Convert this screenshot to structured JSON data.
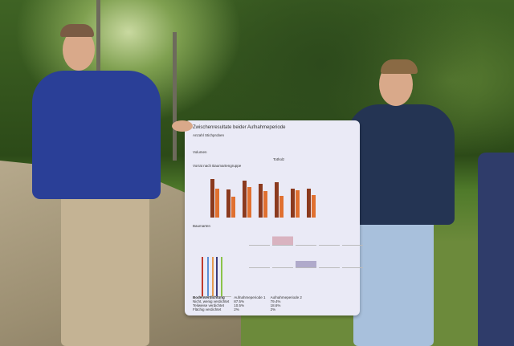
{
  "poster": {
    "title": "Zwischenresultate beider Aufnahmeperiode",
    "sections": [
      "Anzahl Stichproben",
      "Volumen",
      "Totholz",
      "Vorrat nach Baumartengruppe",
      "Baumarten"
    ],
    "soil_table": {
      "headers": [
        "Bodenverdichtung",
        "Aufnahmeperiode 1",
        "Aufnahmeperiode 2"
      ],
      "rows": [
        [
          "Nicht, wenig verdichtet",
          "87.5%",
          "79.4%"
        ],
        [
          "Teilweise verdichtet",
          "10.5%",
          "18.6%"
        ],
        [
          "Flächig verdichtet",
          "2%",
          "2%"
        ]
      ]
    },
    "bar_colors": {
      "period1": "#8b3a1e",
      "period2": "#e07030"
    }
  }
}
